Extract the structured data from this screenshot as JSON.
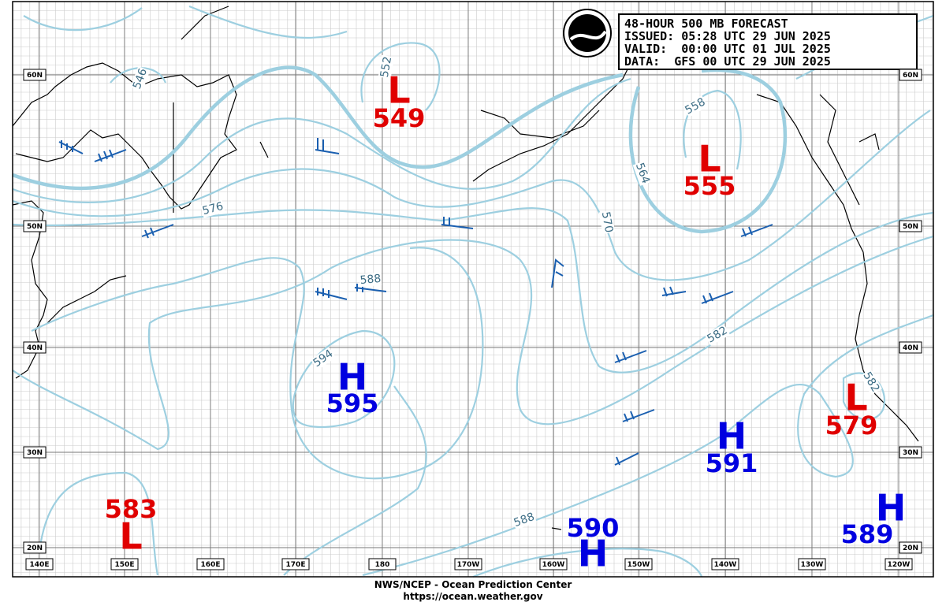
{
  "header": {
    "lines": [
      "48-HOUR 500 MB FORECAST",
      "ISSUED: 05:28 UTC 29 JUN 2025",
      "VALID:  00:00 UTC 01 JUL 2025",
      "DATA:  GFS 00 UTC 29 JUN 2025"
    ]
  },
  "footer": {
    "lines": [
      "NWS/NCEP - Ocean Prediction Center",
      "https://ocean.weather.gov"
    ]
  },
  "longitude_labels": [
    "140E",
    "150E",
    "160E",
    "170E",
    "180",
    "170W",
    "160W",
    "150W",
    "140W",
    "130W",
    "120W"
  ],
  "latitude_labels": [
    "60N",
    "50N",
    "40N",
    "30N",
    "20N"
  ],
  "pressure_centers": [
    {
      "letter": "L",
      "value": 549
    },
    {
      "letter": "L",
      "value": 555
    },
    {
      "letter": "L",
      "value": 579
    },
    {
      "letter": "L",
      "value": 583
    },
    {
      "letter": "H",
      "value": 595
    },
    {
      "letter": "H",
      "value": 591
    },
    {
      "letter": "H",
      "value": 590
    },
    {
      "letter": "H",
      "value": 589
    }
  ],
  "contour_labels": [
    546,
    552,
    558,
    564,
    570,
    576,
    588,
    594,
    582,
    582,
    588
  ]
}
